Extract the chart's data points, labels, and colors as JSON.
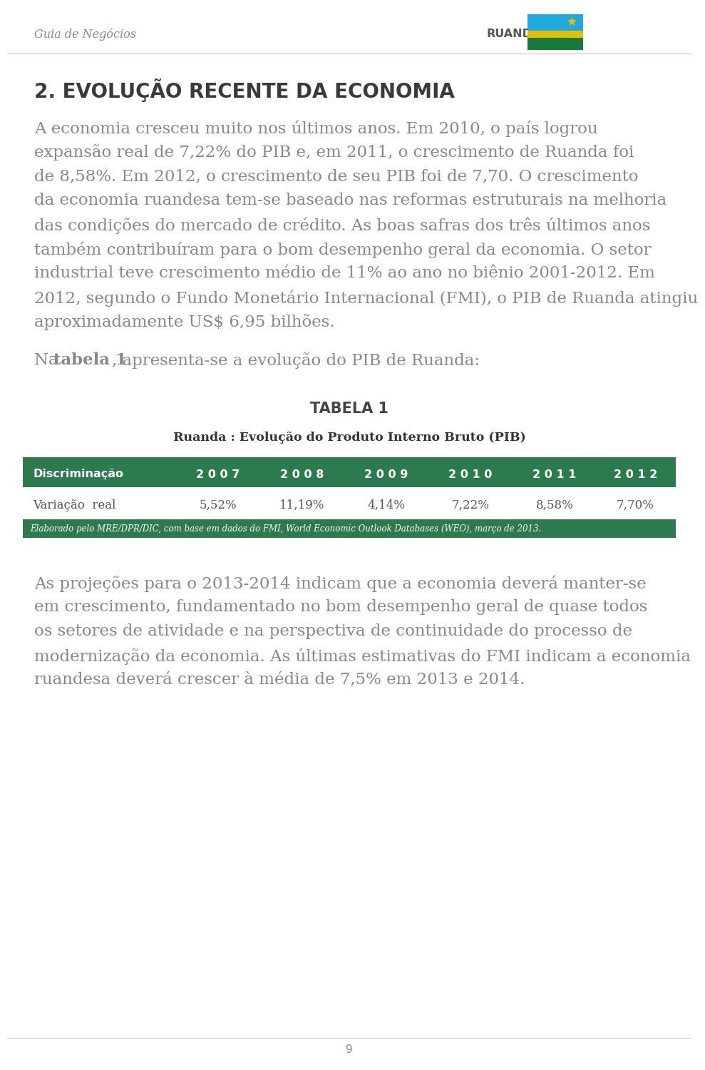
{
  "page_bg": "#ffffff",
  "header_text_left": "Guia de Negócios",
  "header_text_right": "RUANDA",
  "header_line_color": "#cccccc",
  "section_title": "2. EVOLUÇÃO RECENTE DA ECONOMIA",
  "section_title_color": "#3a3a3a",
  "body_text_color": "#888888",
  "table_title": "TABELA 1",
  "table_subtitle": "Ruanda : Evolução do Produto Interno Bruto (PIB)",
  "table_header_bg": "#2d7a4f",
  "table_header_color": "#ffffff",
  "table_footer_bg": "#2d7a4f",
  "table_footer_color": "#ffffff",
  "table_columns": [
    "Discriminação",
    "2 0 0 7",
    "2 0 0 8",
    "2 0 0 9",
    "2 0 1 0",
    "2 0 1 1",
    "2 0 1 2"
  ],
  "table_row_label": "Variação  real",
  "table_row_values": [
    "5,52%",
    "11,19%",
    "4,14%",
    "7,22%",
    "8,58%",
    "7,70%"
  ],
  "table_footer_text": "Elaborado pelo MRE/DPR/DIC, com base em dados do FMI, World Economic Outlook Databases (WEO), março de 2013.",
  "page_number": "9",
  "para1_lines": [
    "A economia cresceu muito nos últimos anos. Em 2010, o país logrou",
    "expansão real de 7,22% do PIB e, em 2011, o crescimento de Ruanda foi",
    "de 8,58%. Em 2012, o crescimento de seu PIB foi de 7,70. O crescimento",
    "da economia ruandesa tem-se baseado nas reformas estruturais na melhoria",
    "das condições do mercado de crédito. As boas safras dos três últimos anos",
    "também contribuíram para o bom desempenho geral da economia. O setor",
    "industrial teve crescimento médio de 11% ao ano no biênio 2001-2012. Em",
    "2012, segundo o Fundo Monetário Internacional (FMI), o PIB de Ruanda atingiu",
    "aproximadamente US$ 6,95 bilhões."
  ],
  "para2_prefix": "Na ",
  "para2_bold": "tabela 1",
  "para2_suffix": ", apresenta-se a evolução do PIB de Ruanda:",
  "final_lines": [
    "As projeções para o 2013-2014 indicam que a economia deverá manter-se",
    "em crescimento, fundamentado no bom desempenho geral de quase todos",
    "os setores de atividade e na perspectiva de continuidade do processo de",
    "modernização da economia. As últimas estimativas do FMI indicam a economia",
    "ruandesa deverá crescer à média de 7,5% em 2013 e 2014."
  ]
}
